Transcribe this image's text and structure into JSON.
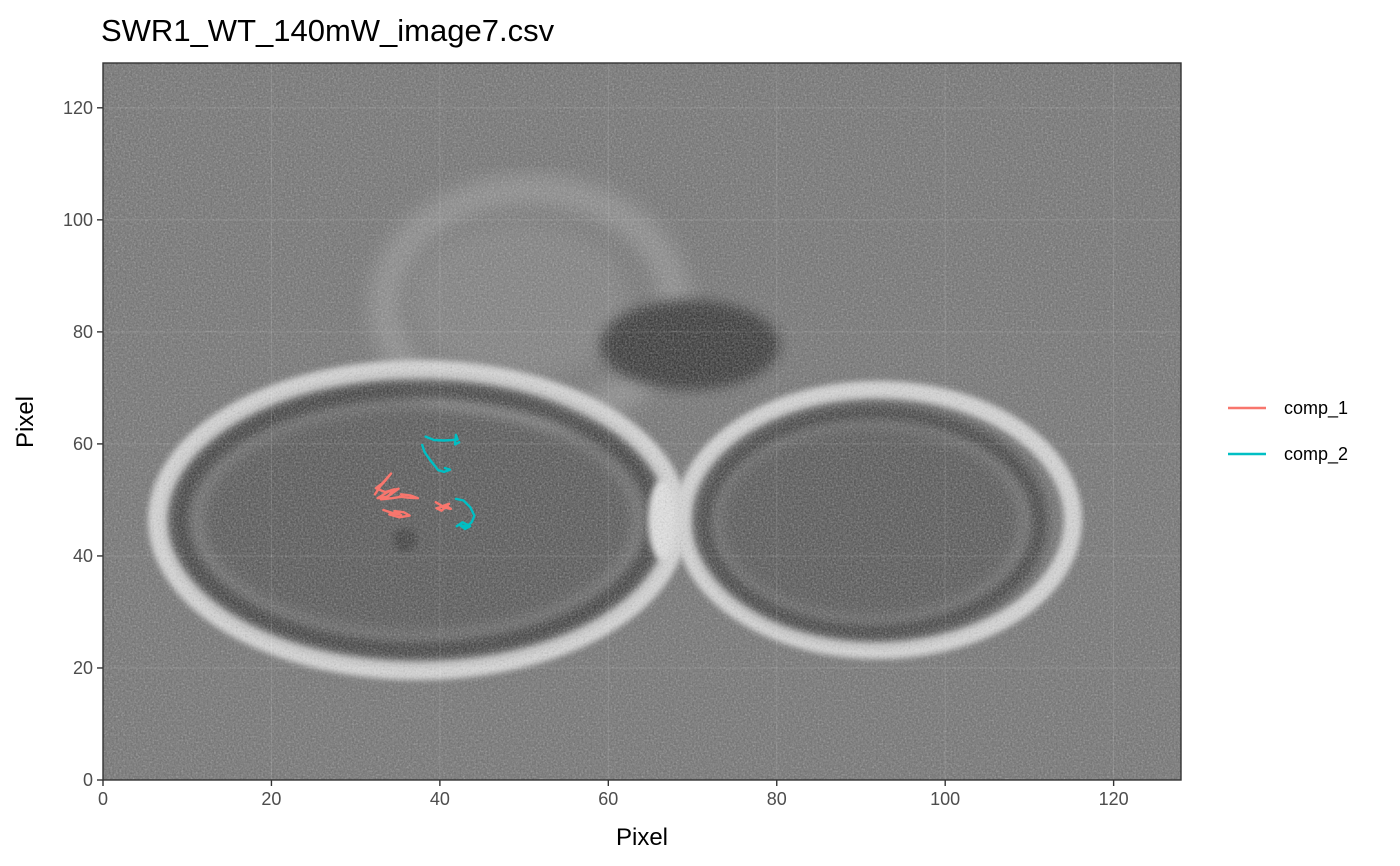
{
  "chart_data": {
    "type": "line",
    "title": "SWR1_WT_140mW_image7.csv",
    "xlabel": "Pixel",
    "ylabel": "Pixel",
    "xlim": [
      0,
      128
    ],
    "ylim": [
      0,
      128
    ],
    "x_ticks": [
      0,
      20,
      40,
      60,
      80,
      100,
      120
    ],
    "y_ticks": [
      0,
      20,
      40,
      60,
      80,
      100,
      120
    ],
    "grid": true,
    "legend_position": "right",
    "background": "grayscale microscopy image of yeast cells",
    "series": [
      {
        "name": "comp_1",
        "color": "#F8766D",
        "tracks": [
          [
            [
              32.3,
              51.0
            ],
            [
              32.9,
              52.4
            ],
            [
              33.6,
              53.6
            ],
            [
              34.2,
              54.7
            ],
            [
              33.2,
              53.0
            ],
            [
              32.4,
              52.1
            ],
            [
              33.5,
              51.4
            ],
            [
              34.6,
              51.9
            ],
            [
              33.8,
              50.6
            ],
            [
              32.6,
              50.3
            ],
            [
              33.9,
              51.5
            ],
            [
              35.1,
              52.0
            ],
            [
              34.0,
              50.8
            ],
            [
              33.0,
              50.1
            ],
            [
              34.3,
              50.3
            ],
            [
              35.6,
              50.6
            ]
          ],
          [
            [
              35.2,
              50.6
            ],
            [
              36.2,
              50.4
            ],
            [
              37.4,
              50.3
            ],
            [
              36.5,
              50.8
            ],
            [
              35.4,
              51.0
            ]
          ],
          [
            [
              33.3,
              48.2
            ],
            [
              34.3,
              47.7
            ],
            [
              35.4,
              47.3
            ],
            [
              34.6,
              48.0
            ],
            [
              35.7,
              47.8
            ],
            [
              36.4,
              47.2
            ],
            [
              35.2,
              46.9
            ],
            [
              34.0,
              47.4
            ]
          ],
          [
            [
              39.5,
              49.6
            ],
            [
              40.3,
              48.9
            ],
            [
              41.1,
              49.3
            ],
            [
              40.2,
              48.1
            ],
            [
              39.6,
              48.5
            ],
            [
              40.7,
              49.0
            ],
            [
              41.3,
              48.4
            ],
            [
              40.1,
              48.8
            ]
          ]
        ]
      },
      {
        "name": "comp_2",
        "color": "#00BFC4",
        "tracks": [
          [
            [
              38.3,
              61.3
            ],
            [
              39.3,
              60.7
            ],
            [
              40.5,
              60.6
            ],
            [
              41.4,
              60.7
            ],
            [
              42.1,
              60.8
            ],
            [
              41.9,
              61.6
            ],
            [
              41.8,
              59.9
            ],
            [
              42.3,
              60.3
            ]
          ],
          [
            [
              37.9,
              59.8
            ],
            [
              38.2,
              58.5
            ],
            [
              38.9,
              57.0
            ],
            [
              39.4,
              56.1
            ],
            [
              39.8,
              55.3
            ],
            [
              40.5,
              55.0
            ],
            [
              41.2,
              55.4
            ],
            [
              40.6,
              55.7
            ]
          ],
          [
            [
              41.9,
              50.2
            ],
            [
              42.8,
              49.9
            ],
            [
              43.6,
              48.7
            ],
            [
              44.1,
              47.2
            ],
            [
              43.8,
              46.1
            ],
            [
              43.2,
              45.2
            ],
            [
              42.3,
              45.6
            ],
            [
              43.0,
              44.8
            ],
            [
              43.6,
              45.3
            ],
            [
              42.7,
              46.0
            ],
            [
              42.0,
              45.3
            ]
          ]
        ]
      }
    ]
  }
}
